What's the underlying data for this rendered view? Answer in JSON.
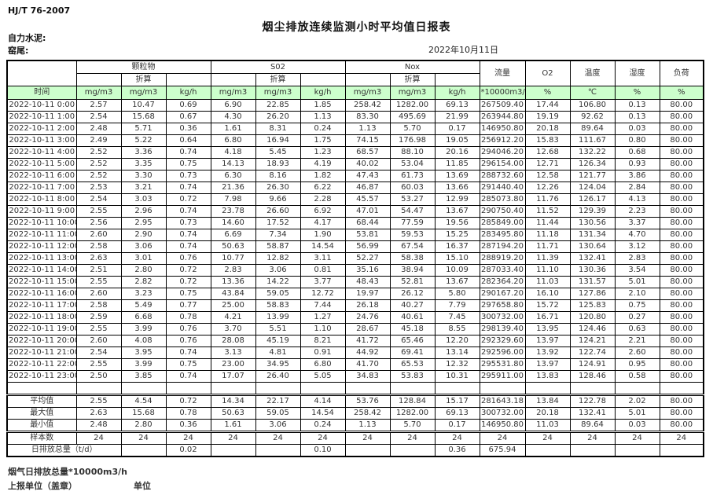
{
  "page": {
    "standard": "HJ/T 76-2007",
    "title": "烟尘排放连续监测小时平均值日报表",
    "company": "自力水泥:",
    "position": "窑尾:",
    "date": "2022年10月11日"
  },
  "colors": {
    "header_green": "#ccffcc",
    "header_navy": "#000080",
    "border": "#000000"
  },
  "table": {
    "time_header": "时间",
    "zhesuan_label": "折算",
    "groups": [
      {
        "label": "颗粒物"
      },
      {
        "label": "S02"
      },
      {
        "label": "Nox"
      }
    ],
    "single_headers": [
      "流量",
      "O2",
      "温度",
      "湿度",
      "负荷"
    ],
    "unit_row": [
      "mg/m3",
      "mg/m3",
      "kg/h",
      "mg/m3",
      "mg/m3",
      "kg/h",
      "mg/m3",
      "mg/m3",
      "kg/h",
      "*10000m3/h",
      "%",
      "℃",
      "%",
      "%"
    ],
    "rows": [
      {
        "time": "2022-10-11 0:00",
        "values": [
          "2.57",
          "10.47",
          "0.69",
          "6.90",
          "22.85",
          "1.85",
          "258.42",
          "1282.00",
          "69.13",
          "267509.40",
          "17.44",
          "106.80",
          "0.13",
          "80.00"
        ]
      },
      {
        "time": "2022-10-11 1:00",
        "values": [
          "2.54",
          "15.68",
          "0.67",
          "4.30",
          "26.20",
          "1.13",
          "83.30",
          "495.69",
          "21.99",
          "263944.80",
          "19.19",
          "92.62",
          "0.13",
          "80.00"
        ]
      },
      {
        "time": "2022-10-11 2:00",
        "values": [
          "2.48",
          "5.71",
          "0.36",
          "1.61",
          "8.31",
          "0.24",
          "1.13",
          "5.70",
          "0.17",
          "146950.80",
          "20.18",
          "89.64",
          "0.03",
          "80.00"
        ]
      },
      {
        "time": "2022-10-11 3:00",
        "values": [
          "2.49",
          "5.22",
          "0.64",
          "6.80",
          "16.94",
          "1.75",
          "74.15",
          "176.98",
          "19.05",
          "256912.20",
          "15.83",
          "111.67",
          "0.80",
          "80.00"
        ]
      },
      {
        "time": "2022-10-11 4:00",
        "values": [
          "2.52",
          "3.36",
          "0.74",
          "4.18",
          "5.45",
          "1.23",
          "68.57",
          "88.10",
          "20.16",
          "294046.20",
          "12.68",
          "132.22",
          "0.68",
          "80.00"
        ]
      },
      {
        "time": "2022-10-11 5:00",
        "values": [
          "2.52",
          "3.35",
          "0.75",
          "14.13",
          "18.93",
          "4.19",
          "40.02",
          "53.04",
          "11.85",
          "296154.00",
          "12.71",
          "126.34",
          "0.93",
          "80.00"
        ]
      },
      {
        "time": "2022-10-11 6:00",
        "values": [
          "2.52",
          "3.30",
          "0.73",
          "6.30",
          "8.16",
          "1.82",
          "47.43",
          "61.73",
          "13.69",
          "288732.60",
          "12.58",
          "121.77",
          "3.86",
          "80.00"
        ]
      },
      {
        "time": "2022-10-11 7:00",
        "values": [
          "2.53",
          "3.21",
          "0.74",
          "21.36",
          "26.30",
          "6.22",
          "46.87",
          "60.03",
          "13.66",
          "291440.40",
          "12.26",
          "124.04",
          "2.84",
          "80.00"
        ]
      },
      {
        "time": "2022-10-11 8:00",
        "values": [
          "2.54",
          "3.03",
          "0.72",
          "7.98",
          "9.66",
          "2.28",
          "45.57",
          "53.27",
          "12.99",
          "285073.80",
          "11.76",
          "126.17",
          "4.13",
          "80.00"
        ]
      },
      {
        "time": "2022-10-11 9:00",
        "values": [
          "2.55",
          "2.96",
          "0.74",
          "23.78",
          "26.60",
          "6.92",
          "47.01",
          "54.47",
          "13.67",
          "290750.40",
          "11.52",
          "129.39",
          "2.23",
          "80.00"
        ]
      },
      {
        "time": "2022-10-11 10:00",
        "values": [
          "2.56",
          "2.95",
          "0.73",
          "14.60",
          "17.52",
          "4.17",
          "68.44",
          "77.59",
          "19.56",
          "285849.00",
          "11.44",
          "130.56",
          "3.37",
          "80.00"
        ]
      },
      {
        "time": "2022-10-11 11:00",
        "values": [
          "2.60",
          "2.90",
          "0.74",
          "6.69",
          "7.34",
          "1.90",
          "53.81",
          "59.53",
          "15.25",
          "283495.80",
          "11.18",
          "131.34",
          "4.70",
          "80.00"
        ]
      },
      {
        "time": "2022-10-11 12:00",
        "values": [
          "2.58",
          "3.06",
          "0.74",
          "50.63",
          "58.87",
          "14.54",
          "56.99",
          "67.54",
          "16.37",
          "287194.20",
          "11.71",
          "130.64",
          "3.12",
          "80.00"
        ]
      },
      {
        "time": "2022-10-11 13:00",
        "values": [
          "2.63",
          "3.01",
          "0.76",
          "10.77",
          "12.82",
          "3.11",
          "52.27",
          "58.38",
          "15.10",
          "288919.20",
          "11.39",
          "132.41",
          "2.83",
          "80.00"
        ]
      },
      {
        "time": "2022-10-11 14:00",
        "values": [
          "2.51",
          "2.80",
          "0.72",
          "2.83",
          "3.06",
          "0.81",
          "35.16",
          "38.94",
          "10.09",
          "287033.40",
          "11.10",
          "130.36",
          "3.54",
          "80.00"
        ]
      },
      {
        "time": "2022-10-11 15:00",
        "values": [
          "2.55",
          "2.82",
          "0.72",
          "13.36",
          "14.22",
          "3.77",
          "48.43",
          "52.81",
          "13.67",
          "282364.20",
          "11.03",
          "131.57",
          "5.01",
          "80.00"
        ]
      },
      {
        "time": "2022-10-11 16:00",
        "values": [
          "2.60",
          "3.23",
          "0.75",
          "43.84",
          "59.05",
          "12.72",
          "19.97",
          "26.12",
          "5.80",
          "290167.20",
          "16.10",
          "127.86",
          "2.10",
          "80.00"
        ]
      },
      {
        "time": "2022-10-11 17:00",
        "values": [
          "2.58",
          "5.49",
          "0.77",
          "25.00",
          "58.83",
          "7.44",
          "26.18",
          "40.27",
          "7.79",
          "297658.80",
          "15.72",
          "125.83",
          "0.75",
          "80.00"
        ]
      },
      {
        "time": "2022-10-11 18:00",
        "values": [
          "2.59",
          "6.68",
          "0.78",
          "4.21",
          "13.99",
          "1.27",
          "24.76",
          "40.61",
          "7.45",
          "300732.00",
          "16.71",
          "120.80",
          "0.27",
          "80.00"
        ]
      },
      {
        "time": "2022-10-11 19:00",
        "values": [
          "2.55",
          "3.99",
          "0.76",
          "3.70",
          "5.51",
          "1.10",
          "28.67",
          "45.18",
          "8.55",
          "298139.40",
          "13.95",
          "124.46",
          "0.63",
          "80.00"
        ]
      },
      {
        "time": "2022-10-11 20:00",
        "values": [
          "2.60",
          "4.08",
          "0.76",
          "28.08",
          "45.19",
          "8.21",
          "41.72",
          "65.46",
          "12.20",
          "292329.60",
          "13.97",
          "124.21",
          "2.21",
          "80.00"
        ]
      },
      {
        "time": "2022-10-11 21:00",
        "values": [
          "2.54",
          "3.95",
          "0.74",
          "3.13",
          "4.81",
          "0.91",
          "44.92",
          "69.41",
          "13.14",
          "292596.00",
          "13.92",
          "122.74",
          "2.60",
          "80.00"
        ]
      },
      {
        "time": "2022-10-11 22:00",
        "values": [
          "2.55",
          "3.99",
          "0.75",
          "23.00",
          "34.95",
          "6.80",
          "41.70",
          "65.53",
          "12.32",
          "295531.80",
          "13.97",
          "124.91",
          "0.95",
          "80.00"
        ]
      },
      {
        "time": "2022-10-11 23:00",
        "values": [
          "2.50",
          "3.85",
          "0.74",
          "17.07",
          "26.40",
          "5.05",
          "34.83",
          "53.83",
          "10.31",
          "295911.00",
          "13.83",
          "128.46",
          "0.58",
          "80.00"
        ]
      }
    ],
    "summary_rows": [
      {
        "kind": "avg",
        "label": "平均值",
        "label_colspan": 1,
        "values": [
          "2.55",
          "4.54",
          "0.72",
          "14.34",
          "22.17",
          "4.14",
          "53.76",
          "128.84",
          "15.17",
          "281643.18",
          "13.84",
          "122.78",
          "2.02",
          "80.00"
        ]
      },
      {
        "kind": "max",
        "label": "最大值",
        "label_colspan": 1,
        "values": [
          "2.63",
          "15.68",
          "0.78",
          "50.63",
          "59.05",
          "14.54",
          "258.42",
          "1282.00",
          "69.13",
          "300732.00",
          "20.18",
          "132.41",
          "5.01",
          "80.00"
        ]
      },
      {
        "kind": "min",
        "label": "最小值",
        "label_colspan": 1,
        "values": [
          "2.48",
          "2.80",
          "0.36",
          "1.61",
          "3.06",
          "0.24",
          "1.13",
          "5.70",
          "0.17",
          "146950.80",
          "11.03",
          "89.64",
          "0.03",
          "80.00"
        ]
      },
      {
        "kind": "samples",
        "label": "样本数",
        "label_colspan": 1,
        "values": [
          "24",
          "24",
          "24",
          "24",
          "24",
          "24",
          "24",
          "24",
          "24",
          "24",
          "24",
          "24",
          "24",
          "24"
        ]
      },
      {
        "kind": "total",
        "label": "日排放总量（t/d）",
        "label_colspan": 2,
        "values": [
          "",
          "0.02",
          "",
          "",
          "0.10",
          "",
          "",
          "0.36",
          "675.94",
          "",
          "",
          "",
          ""
        ]
      }
    ]
  },
  "footer": {
    "flow_note": "烟气日排放总量*10000m3/h",
    "report_unit": "上报单位（盖章）",
    "unit_label": "单位"
  }
}
